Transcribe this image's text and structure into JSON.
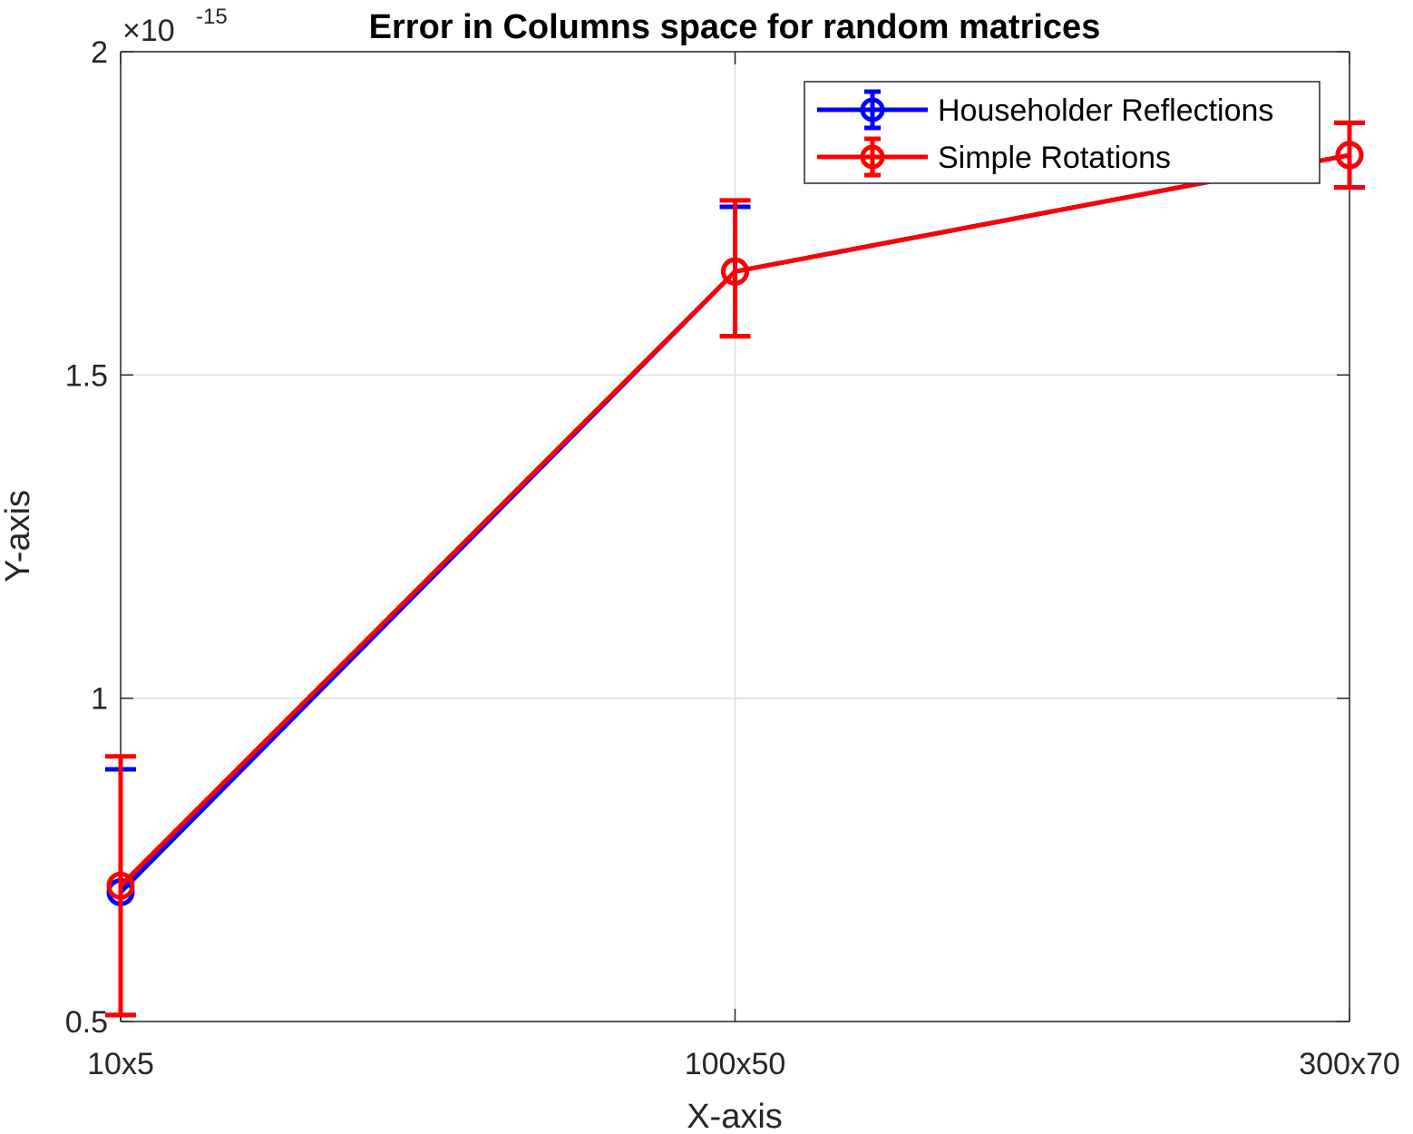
{
  "chart_data": {
    "type": "line",
    "title": "Error in Columns space for random matrices",
    "xlabel": "X-axis",
    "ylabel": "Y-axis",
    "categories": [
      "10x5",
      "100x50",
      "300x70"
    ],
    "ylim": [
      0.5,
      2
    ],
    "yticks": [
      "0.5",
      "1",
      "1.5",
      "2"
    ],
    "y_exponent": {
      "prefix": "×10",
      "power": "-15"
    },
    "grid": true,
    "legend_position": "top-right",
    "series": [
      {
        "name": "Householder Reflections",
        "color": "#0000ff",
        "values": [
          0.7,
          1.66,
          1.84
        ],
        "error_low": [
          0.51,
          1.56,
          1.79
        ],
        "error_high": [
          0.89,
          1.76,
          1.89
        ]
      },
      {
        "name": "Simple Rotations",
        "color": "#ff0000",
        "values": [
          0.71,
          1.66,
          1.84
        ],
        "error_low": [
          0.51,
          1.56,
          1.79
        ],
        "error_high": [
          0.91,
          1.77,
          1.89
        ]
      }
    ]
  }
}
